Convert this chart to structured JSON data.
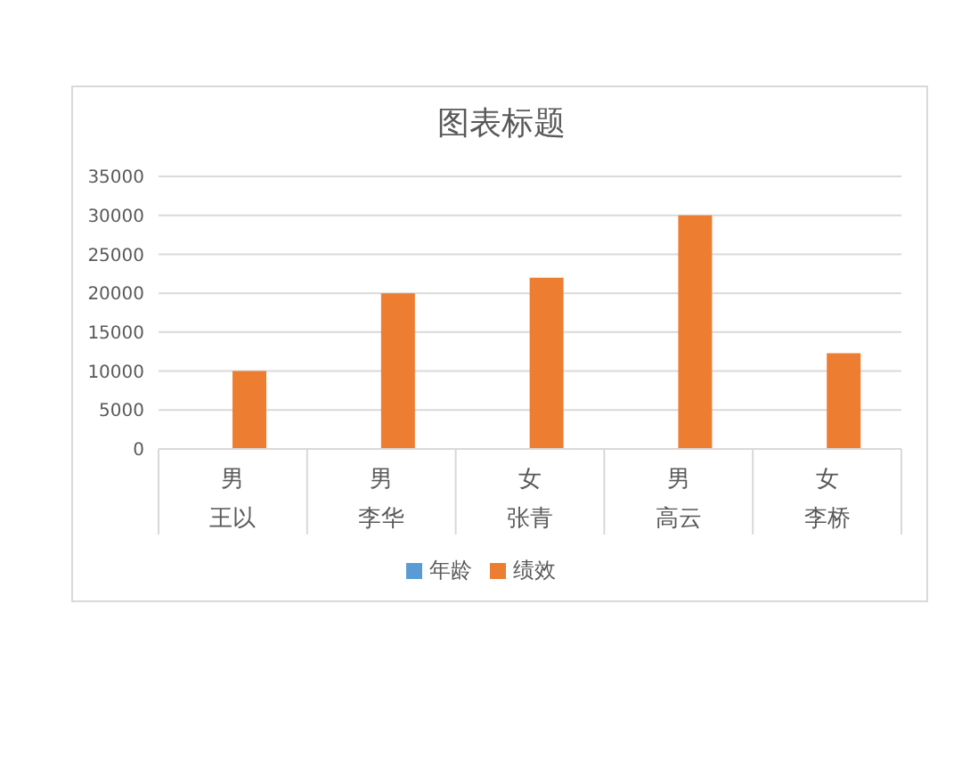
{
  "chart_data": {
    "type": "bar",
    "title": "图表标题",
    "categories": [
      "王以",
      "李华",
      "张青",
      "高云",
      "李桥"
    ],
    "annotations": [
      "男",
      "男",
      "女",
      "男",
      "女"
    ],
    "series": [
      {
        "name": "年龄",
        "color": "#5b9bd5",
        "values": [
          null,
          null,
          null,
          null,
          null
        ]
      },
      {
        "name": "绩效",
        "color": "#ed7d31",
        "values": [
          10000,
          20000,
          22000,
          30000,
          12300
        ]
      }
    ],
    "ylim": [
      0,
      35000
    ],
    "yticks": [
      0,
      5000,
      10000,
      15000,
      20000,
      25000,
      30000,
      35000
    ],
    "grid": "y",
    "legend": "bottom"
  }
}
